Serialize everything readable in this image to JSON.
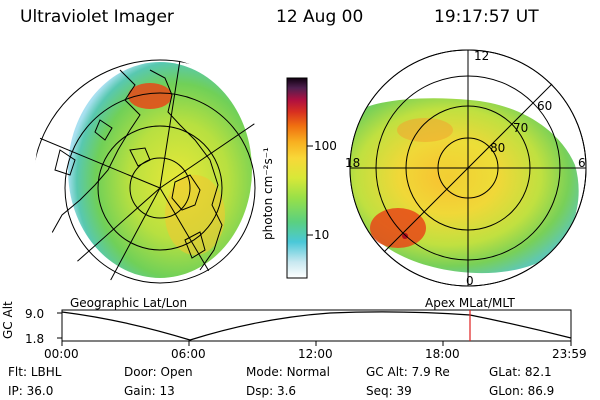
{
  "header": {
    "instrument": "Ultraviolet Imager",
    "date": "12 Aug 00",
    "time": "19:17:57 UT"
  },
  "colorbar": {
    "unit_label": "photon cm⁻²s⁻¹",
    "ticks": [
      "100",
      "10"
    ],
    "colors": [
      "#ffffff",
      "#c8e8f0",
      "#4ac8d8",
      "#5ad080",
      "#98e048",
      "#d8e838",
      "#f8d838",
      "#f8b020",
      "#f07010",
      "#d83020",
      "#b01040",
      "#502050",
      "#100010"
    ]
  },
  "left_map": {
    "label": "Geographic Lat/Lon"
  },
  "right_map": {
    "label": "Apex MLat/MLT",
    "mlt_labels": [
      "12",
      "18",
      "6",
      "0"
    ],
    "lat_labels": [
      "60",
      "70",
      "80"
    ]
  },
  "altitude_plot": {
    "ylabel": "GC Alt",
    "yticks": [
      "9.0",
      "1.8"
    ],
    "xticks": [
      "00:00",
      "06:00",
      "12:00",
      "18:00",
      "23:59"
    ],
    "marker_color": "#e02020"
  },
  "info": {
    "row1": [
      {
        "label": "Flt:",
        "value": "LBHL"
      },
      {
        "label": "Door:",
        "value": "Open"
      },
      {
        "label": "Mode:",
        "value": "Normal"
      },
      {
        "label": "GC Alt:",
        "value": "7.9 Re"
      },
      {
        "label": "GLat:",
        "value": "82.1"
      }
    ],
    "row2": [
      {
        "label": "IP:",
        "value": "36.0"
      },
      {
        "label": "Gain:",
        "value": "13"
      },
      {
        "label": "Dsp:",
        "value": "3.6"
      },
      {
        "label": "Seq:",
        "value": "39"
      },
      {
        "label": "GLon:",
        "value": "86.9"
      }
    ]
  }
}
